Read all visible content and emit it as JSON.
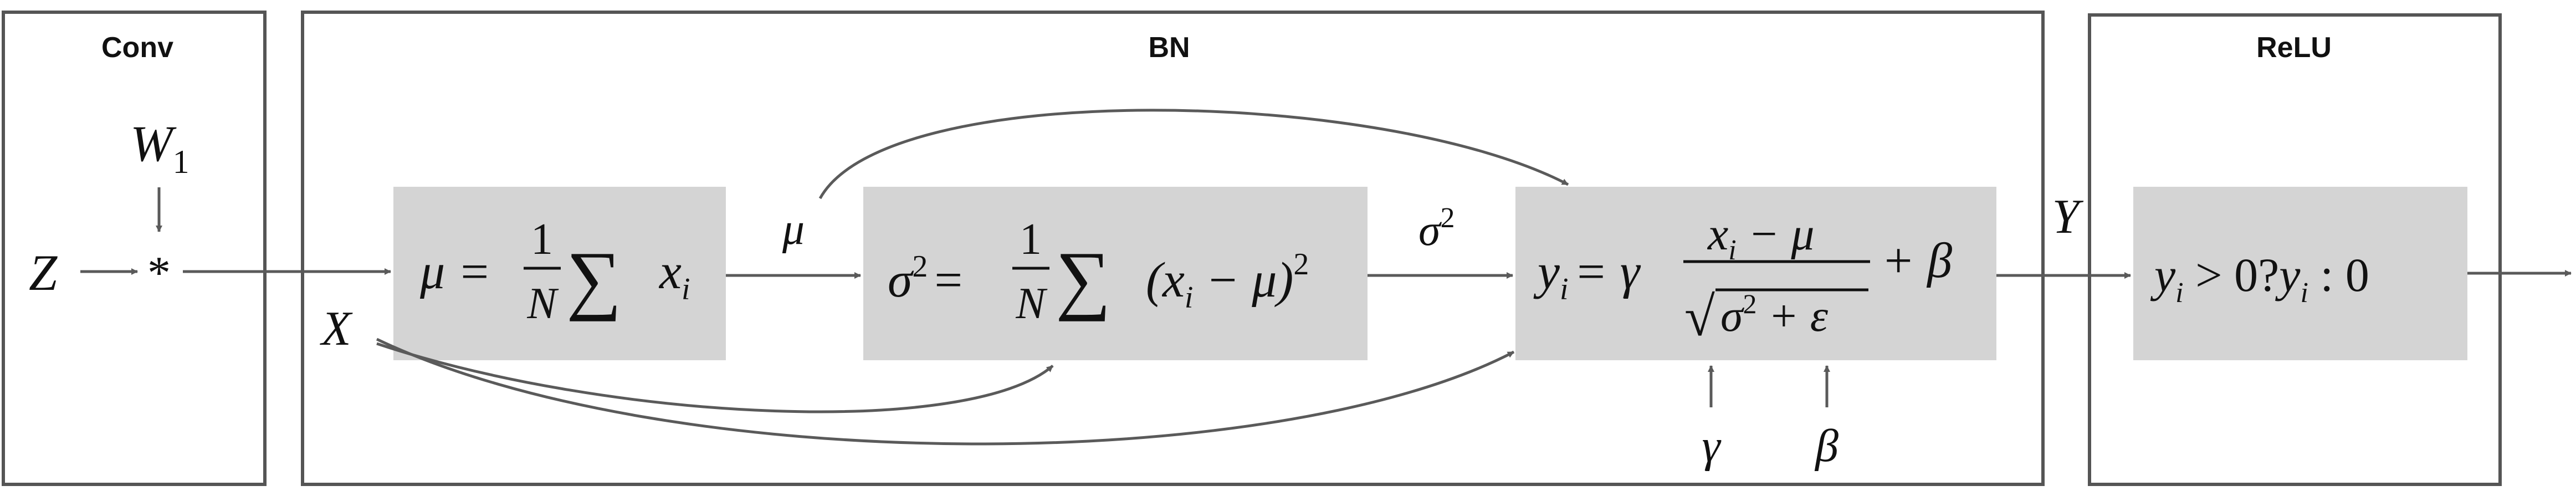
{
  "sections": {
    "conv": "Conv",
    "bn": "BN",
    "relu": "ReLU"
  },
  "inputs": {
    "weight": "W",
    "weight_sub": "1",
    "input": "Z",
    "operator": "*",
    "bn_input": "X",
    "output": "Y"
  },
  "formulas": {
    "mean_lhs": "μ =",
    "mean_num": "1",
    "mean_den": "N",
    "mean_sum": "∑",
    "mean_term": "x",
    "mean_term_sub": "i",
    "var_lhs": "σ",
    "var_lhs_sup": "2",
    "var_eq": "=",
    "var_num": "1",
    "var_den": "N",
    "var_sum": "∑",
    "var_term": "(x",
    "var_term_sub": "i",
    "var_term_rest": " − μ)",
    "var_term_sup": "2",
    "norm_lhs": "y",
    "norm_lhs_sub": "i",
    "norm_eq": "= γ",
    "norm_num": "x",
    "norm_num_sub": "i",
    "norm_num_rest": " − μ",
    "norm_den_sqrt": "√",
    "norm_den": "σ",
    "norm_den_sup": "2",
    "norm_den_rest": " + ε",
    "norm_tail": "+ β",
    "relu_y": "y",
    "relu_y_sub": "i",
    "relu_mid": " > 0?",
    "relu_y2": "y",
    "relu_y2_sub": "i",
    "relu_end": " : 0"
  },
  "edge_labels": {
    "mu": "μ",
    "sigma": "σ",
    "sigma_sup": "2",
    "gamma": "γ",
    "beta": "β"
  },
  "colors": {
    "frame": "#555555",
    "box_fill": "#d4d4d4",
    "arrow": "#5a5a5a",
    "text": "#111111"
  }
}
